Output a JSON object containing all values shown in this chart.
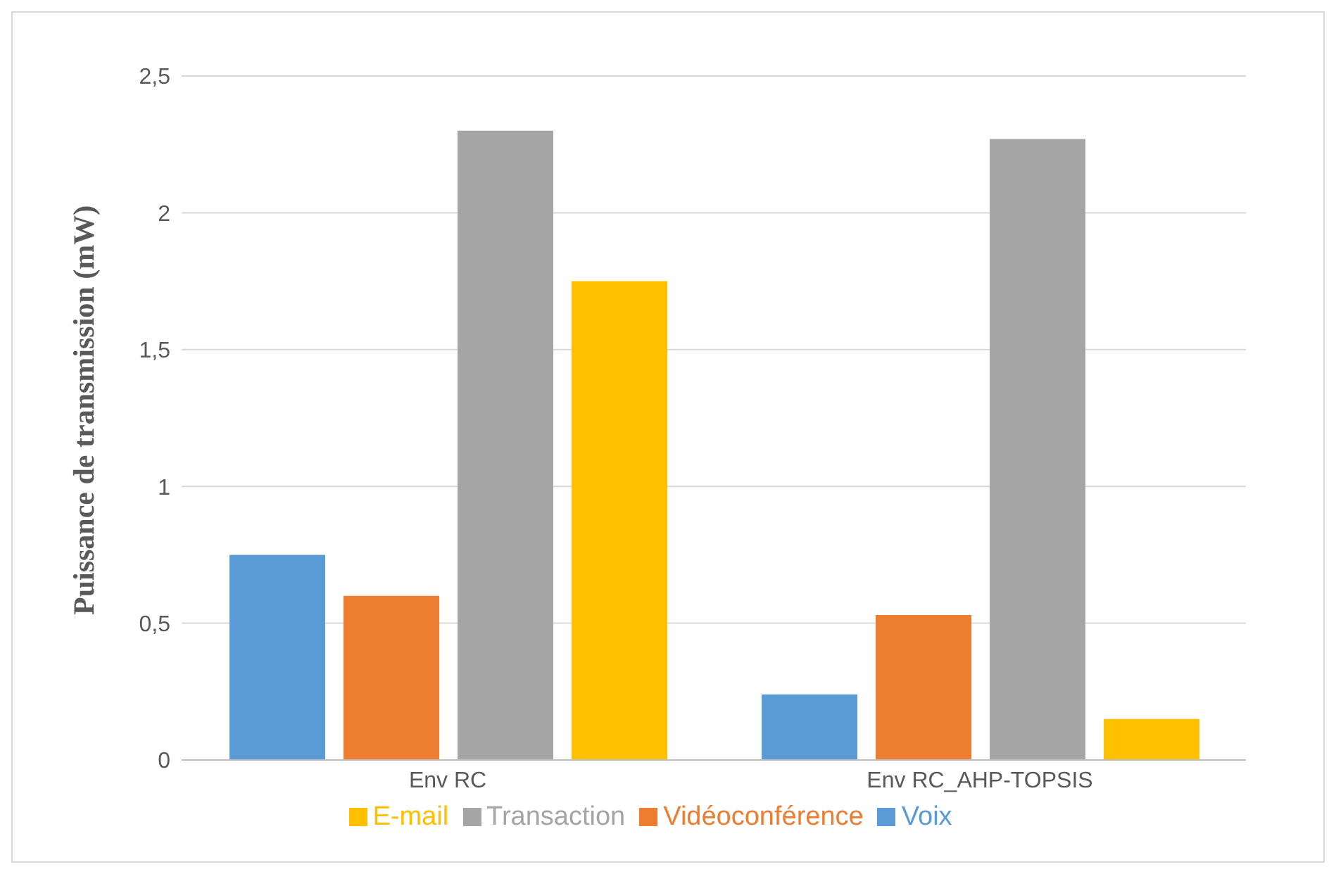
{
  "chart_data": {
    "type": "bar",
    "ylabel": "Puissance de transmission (mW)",
    "categories": [
      "Env RC",
      "Env RC_AHP-TOPSIS"
    ],
    "series": [
      {
        "name": "Voix",
        "color": "#5b9bd5",
        "values": [
          0.75,
          0.24
        ]
      },
      {
        "name": "Vidéoconférence",
        "color": "#ed7d31",
        "values": [
          0.6,
          0.53
        ]
      },
      {
        "name": "Transaction",
        "color": "#a5a5a5",
        "values": [
          2.3,
          2.27
        ]
      },
      {
        "name": "E-mail",
        "color": "#ffc000",
        "values": [
          1.75,
          0.15
        ]
      }
    ],
    "ylim": [
      0,
      2.5
    ],
    "yticks": [
      0,
      {
        "value": 0.5,
        "label": "0,5"
      },
      1,
      {
        "value": 1.5,
        "label": "1,5"
      },
      2,
      {
        "value": 2.5,
        "label": "2,5"
      }
    ],
    "grid": "y",
    "legend": "bottom"
  }
}
